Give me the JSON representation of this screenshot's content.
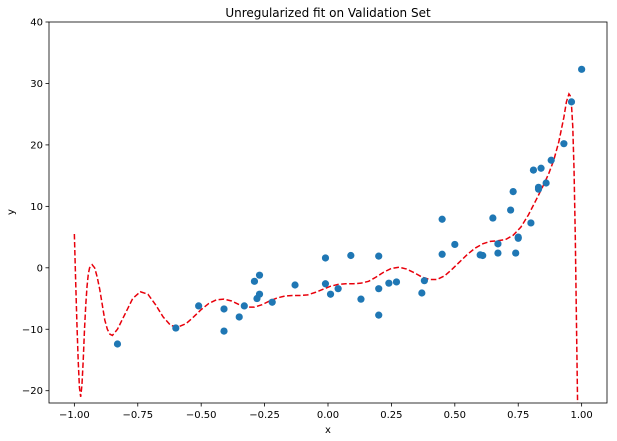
{
  "chart_data": {
    "type": "scatter",
    "title": "Unregularized fit on Validation Set",
    "xlabel": "x",
    "ylabel": "y",
    "xlim": [
      -1.1,
      1.1
    ],
    "ylim": [
      -22,
      40
    ],
    "xticks": [
      -1.0,
      -0.75,
      -0.5,
      -0.25,
      0.0,
      0.25,
      0.5,
      0.75,
      1.0
    ],
    "xtick_labels": [
      "−1.00",
      "−0.75",
      "−0.50",
      "−0.25",
      "0.00",
      "0.25",
      "0.50",
      "0.75",
      "1.00"
    ],
    "yticks": [
      -20,
      -10,
      0,
      10,
      20,
      30,
      40
    ],
    "ytick_labels": [
      "−20",
      "−10",
      "0",
      "10",
      "20",
      "30",
      "40"
    ],
    "grid": false,
    "legend": "none",
    "series": [
      {
        "kind": "scatter",
        "color": "#1f77b4",
        "points": [
          {
            "x": -0.83,
            "y": -12.4
          },
          {
            "x": -0.6,
            "y": -9.8
          },
          {
            "x": -0.51,
            "y": -6.2
          },
          {
            "x": -0.41,
            "y": -6.7
          },
          {
            "x": -0.41,
            "y": -10.3
          },
          {
            "x": -0.35,
            "y": -8.0
          },
          {
            "x": -0.33,
            "y": -6.2
          },
          {
            "x": -0.29,
            "y": -2.2
          },
          {
            "x": -0.28,
            "y": -5.0
          },
          {
            "x": -0.27,
            "y": -1.2
          },
          {
            "x": -0.27,
            "y": -4.3
          },
          {
            "x": -0.22,
            "y": -5.6
          },
          {
            "x": -0.13,
            "y": -2.8
          },
          {
            "x": -0.01,
            "y": 1.6
          },
          {
            "x": -0.01,
            "y": -2.6
          },
          {
            "x": 0.01,
            "y": -4.3
          },
          {
            "x": 0.04,
            "y": -3.4
          },
          {
            "x": 0.09,
            "y": 2.0
          },
          {
            "x": 0.13,
            "y": -5.1
          },
          {
            "x": 0.2,
            "y": 1.9
          },
          {
            "x": 0.2,
            "y": -3.4
          },
          {
            "x": 0.2,
            "y": -7.7
          },
          {
            "x": 0.24,
            "y": -2.5
          },
          {
            "x": 0.27,
            "y": -2.3
          },
          {
            "x": 0.37,
            "y": -4.1
          },
          {
            "x": 0.38,
            "y": -2.1
          },
          {
            "x": 0.45,
            "y": 2.2
          },
          {
            "x": 0.45,
            "y": 7.9
          },
          {
            "x": 0.5,
            "y": 3.8
          },
          {
            "x": 0.6,
            "y": 2.1
          },
          {
            "x": 0.61,
            "y": 2.0
          },
          {
            "x": 0.65,
            "y": 8.1
          },
          {
            "x": 0.67,
            "y": 3.9
          },
          {
            "x": 0.67,
            "y": 2.4
          },
          {
            "x": 0.72,
            "y": 9.4
          },
          {
            "x": 0.73,
            "y": 12.4
          },
          {
            "x": 0.74,
            "y": 2.4
          },
          {
            "x": 0.75,
            "y": 5.0
          },
          {
            "x": 0.75,
            "y": 4.8
          },
          {
            "x": 0.8,
            "y": 7.3
          },
          {
            "x": 0.81,
            "y": 15.9
          },
          {
            "x": 0.83,
            "y": 12.8
          },
          {
            "x": 0.83,
            "y": 13.1
          },
          {
            "x": 0.84,
            "y": 16.2
          },
          {
            "x": 0.86,
            "y": 13.8
          },
          {
            "x": 0.88,
            "y": 17.5
          },
          {
            "x": 0.93,
            "y": 20.2
          },
          {
            "x": 0.96,
            "y": 27.0
          },
          {
            "x": 1.0,
            "y": 32.3
          }
        ]
      },
      {
        "kind": "line",
        "style": "dashed",
        "color": "#e8000b",
        "points": [
          {
            "x": -1.0,
            "y": 5.5
          },
          {
            "x": -0.995,
            "y": -2.0
          },
          {
            "x": -0.99,
            "y": -9.0
          },
          {
            "x": -0.985,
            "y": -15.0
          },
          {
            "x": -0.98,
            "y": -19.5
          },
          {
            "x": -0.975,
            "y": -21.0
          },
          {
            "x": -0.97,
            "y": -19.0
          },
          {
            "x": -0.965,
            "y": -15.0
          },
          {
            "x": -0.96,
            "y": -10.0
          },
          {
            "x": -0.955,
            "y": -6.0
          },
          {
            "x": -0.95,
            "y": -3.0
          },
          {
            "x": -0.945,
            "y": -1.0
          },
          {
            "x": -0.94,
            "y": 0.0
          },
          {
            "x": -0.93,
            "y": 0.5
          },
          {
            "x": -0.92,
            "y": 0.0
          },
          {
            "x": -0.91,
            "y": -1.5
          },
          {
            "x": -0.9,
            "y": -3.5
          },
          {
            "x": -0.89,
            "y": -6.0
          },
          {
            "x": -0.88,
            "y": -8.5
          },
          {
            "x": -0.87,
            "y": -10.0
          },
          {
            "x": -0.86,
            "y": -10.8
          },
          {
            "x": -0.85,
            "y": -11.0
          },
          {
            "x": -0.83,
            "y": -10.0
          },
          {
            "x": -0.8,
            "y": -7.5
          },
          {
            "x": -0.77,
            "y": -5.0
          },
          {
            "x": -0.74,
            "y": -3.9
          },
          {
            "x": -0.71,
            "y": -4.3
          },
          {
            "x": -0.68,
            "y": -6.0
          },
          {
            "x": -0.65,
            "y": -8.0
          },
          {
            "x": -0.62,
            "y": -9.4
          },
          {
            "x": -0.59,
            "y": -9.6
          },
          {
            "x": -0.56,
            "y": -9.1
          },
          {
            "x": -0.53,
            "y": -8.0
          },
          {
            "x": -0.5,
            "y": -6.8
          },
          {
            "x": -0.47,
            "y": -5.8
          },
          {
            "x": -0.44,
            "y": -5.2
          },
          {
            "x": -0.41,
            "y": -5.1
          },
          {
            "x": -0.38,
            "y": -5.4
          },
          {
            "x": -0.35,
            "y": -6.0
          },
          {
            "x": -0.32,
            "y": -6.4
          },
          {
            "x": -0.29,
            "y": -6.4
          },
          {
            "x": -0.26,
            "y": -6.0
          },
          {
            "x": -0.23,
            "y": -5.4
          },
          {
            "x": -0.2,
            "y": -4.9
          },
          {
            "x": -0.17,
            "y": -4.6
          },
          {
            "x": -0.14,
            "y": -4.5
          },
          {
            "x": -0.11,
            "y": -4.5
          },
          {
            "x": -0.08,
            "y": -4.4
          },
          {
            "x": -0.05,
            "y": -4.0
          },
          {
            "x": -0.02,
            "y": -3.5
          },
          {
            "x": 0.01,
            "y": -3.0
          },
          {
            "x": 0.04,
            "y": -2.7
          },
          {
            "x": 0.07,
            "y": -2.6
          },
          {
            "x": 0.1,
            "y": -2.6
          },
          {
            "x": 0.13,
            "y": -2.5
          },
          {
            "x": 0.16,
            "y": -2.2
          },
          {
            "x": 0.19,
            "y": -1.5
          },
          {
            "x": 0.22,
            "y": -0.7
          },
          {
            "x": 0.25,
            "y": -0.1
          },
          {
            "x": 0.28,
            "y": 0.1
          },
          {
            "x": 0.31,
            "y": -0.2
          },
          {
            "x": 0.34,
            "y": -0.8
          },
          {
            "x": 0.37,
            "y": -1.5
          },
          {
            "x": 0.4,
            "y": -1.9
          },
          {
            "x": 0.43,
            "y": -1.9
          },
          {
            "x": 0.46,
            "y": -1.3
          },
          {
            "x": 0.49,
            "y": -0.2
          },
          {
            "x": 0.52,
            "y": 1.0
          },
          {
            "x": 0.55,
            "y": 2.2
          },
          {
            "x": 0.58,
            "y": 3.2
          },
          {
            "x": 0.61,
            "y": 3.9
          },
          {
            "x": 0.64,
            "y": 4.3
          },
          {
            "x": 0.67,
            "y": 4.4
          },
          {
            "x": 0.7,
            "y": 4.6
          },
          {
            "x": 0.73,
            "y": 5.3
          },
          {
            "x": 0.76,
            "y": 6.6
          },
          {
            "x": 0.79,
            "y": 8.6
          },
          {
            "x": 0.82,
            "y": 11.0
          },
          {
            "x": 0.85,
            "y": 13.5
          },
          {
            "x": 0.87,
            "y": 15.3
          },
          {
            "x": 0.89,
            "y": 17.5
          },
          {
            "x": 0.91,
            "y": 20.5
          },
          {
            "x": 0.93,
            "y": 24.5
          },
          {
            "x": 0.94,
            "y": 27.0
          },
          {
            "x": 0.95,
            "y": 28.3
          },
          {
            "x": 0.955,
            "y": 28.0
          },
          {
            "x": 0.96,
            "y": 26.5
          },
          {
            "x": 0.965,
            "y": 23.0
          },
          {
            "x": 0.97,
            "y": 16.0
          },
          {
            "x": 0.975,
            "y": 5.0
          },
          {
            "x": 0.98,
            "y": -10.0
          },
          {
            "x": 0.985,
            "y": -25.0
          }
        ]
      }
    ]
  }
}
